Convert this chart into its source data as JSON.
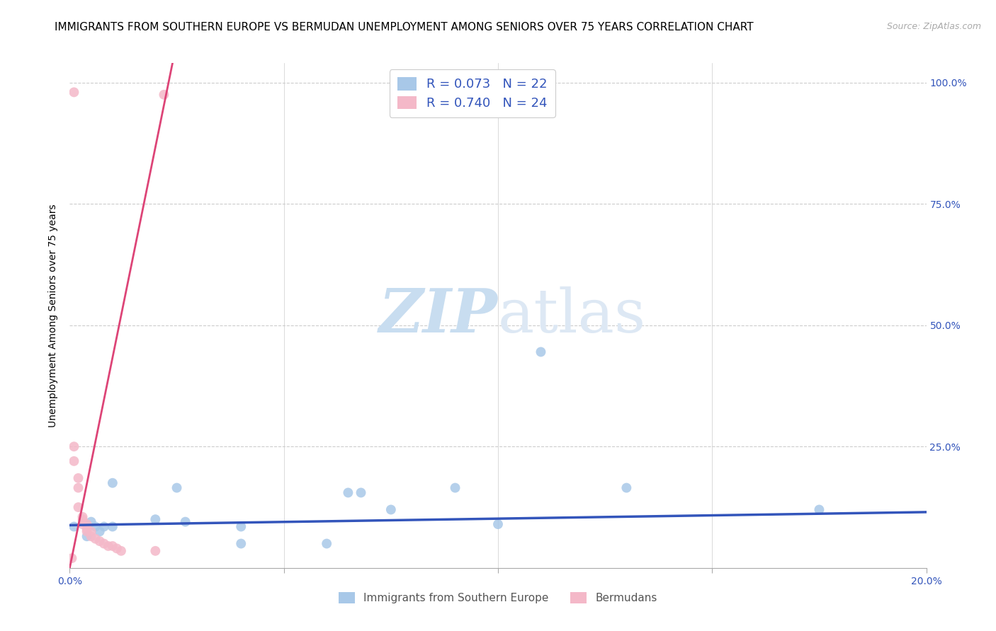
{
  "title": "IMMIGRANTS FROM SOUTHERN EUROPE VS BERMUDAN UNEMPLOYMENT AMONG SENIORS OVER 75 YEARS CORRELATION CHART",
  "source": "Source: ZipAtlas.com",
  "ylabel": "Unemployment Among Seniors over 75 years",
  "xlim": [
    0.0,
    0.2
  ],
  "ylim": [
    0.0,
    1.04
  ],
  "blue_color": "#a8c8e8",
  "blue_line_color": "#3355bb",
  "pink_color": "#f4b8c8",
  "pink_line_color": "#dd4477",
  "legend_R_blue": "R = 0.073",
  "legend_N_blue": "N = 22",
  "legend_R_pink": "R = 0.740",
  "legend_N_pink": "N = 24",
  "legend_label_blue": "Immigrants from Southern Europe",
  "legend_label_pink": "Bermudans",
  "blue_scatter_x": [
    0.001,
    0.004,
    0.005,
    0.006,
    0.007,
    0.008,
    0.01,
    0.01,
    0.02,
    0.025,
    0.027,
    0.04,
    0.04,
    0.06,
    0.065,
    0.068,
    0.075,
    0.09,
    0.1,
    0.11,
    0.13,
    0.175
  ],
  "blue_scatter_y": [
    0.085,
    0.065,
    0.095,
    0.085,
    0.075,
    0.085,
    0.175,
    0.085,
    0.1,
    0.165,
    0.095,
    0.085,
    0.05,
    0.05,
    0.155,
    0.155,
    0.12,
    0.165,
    0.09,
    0.445,
    0.165,
    0.12
  ],
  "pink_scatter_x": [
    0.0005,
    0.001,
    0.001,
    0.001,
    0.002,
    0.002,
    0.002,
    0.003,
    0.003,
    0.003,
    0.004,
    0.004,
    0.004,
    0.005,
    0.005,
    0.006,
    0.007,
    0.008,
    0.009,
    0.01,
    0.011,
    0.012,
    0.02,
    0.022
  ],
  "pink_scatter_y": [
    0.02,
    0.98,
    0.25,
    0.22,
    0.185,
    0.165,
    0.125,
    0.105,
    0.1,
    0.09,
    0.09,
    0.08,
    0.075,
    0.075,
    0.065,
    0.06,
    0.055,
    0.05,
    0.045,
    0.045,
    0.04,
    0.035,
    0.035,
    0.975
  ],
  "blue_trendline_x": [
    0.0,
    0.2
  ],
  "blue_trendline_y": [
    0.088,
    0.115
  ],
  "pink_trendline_x": [
    0.0,
    0.024
  ],
  "pink_trendline_y": [
    0.0,
    1.04
  ],
  "watermark_zip": "ZIP",
  "watermark_atlas": "atlas",
  "grid_color": "#cccccc",
  "background_color": "#ffffff",
  "title_fontsize": 11,
  "axis_label_fontsize": 10,
  "tick_fontsize": 10,
  "marker_size": 100
}
